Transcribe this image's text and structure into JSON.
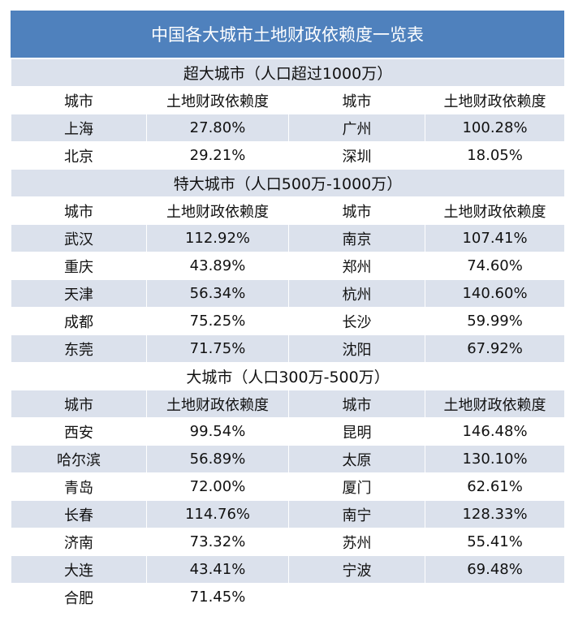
{
  "title": "中国各大城市土地财政依赖度一览表",
  "header": {
    "city": "城市",
    "ratio": "土地财政依赖度"
  },
  "sections": [
    {
      "label": "超大城市（人口超过1000万）",
      "rows": [
        [
          {
            "city": "上海",
            "ratio": "27.80%"
          },
          {
            "city": "广州",
            "ratio": "100.28%"
          }
        ],
        [
          {
            "city": "北京",
            "ratio": "29.21%"
          },
          {
            "city": "深圳",
            "ratio": "18.05%"
          }
        ]
      ]
    },
    {
      "label": "特大城市（人口500万-1000万）",
      "rows": [
        [
          {
            "city": "武汉",
            "ratio": "112.92%"
          },
          {
            "city": "南京",
            "ratio": "107.41%"
          }
        ],
        [
          {
            "city": "重庆",
            "ratio": "43.89%"
          },
          {
            "city": "郑州",
            "ratio": "74.60%"
          }
        ],
        [
          {
            "city": "天津",
            "ratio": "56.34%"
          },
          {
            "city": "杭州",
            "ratio": "140.60%"
          }
        ],
        [
          {
            "city": "成都",
            "ratio": "75.25%"
          },
          {
            "city": "长沙",
            "ratio": "59.99%"
          }
        ],
        [
          {
            "city": "东莞",
            "ratio": "71.75%"
          },
          {
            "city": "沈阳",
            "ratio": "67.92%"
          }
        ]
      ]
    },
    {
      "label": "大城市（人口300万-500万）",
      "rows": [
        [
          {
            "city": "西安",
            "ratio": "99.54%"
          },
          {
            "city": "昆明",
            "ratio": "146.48%"
          }
        ],
        [
          {
            "city": "哈尔滨",
            "ratio": "56.89%"
          },
          {
            "city": "太原",
            "ratio": "130.10%"
          }
        ],
        [
          {
            "city": "青岛",
            "ratio": "72.00%"
          },
          {
            "city": "厦门",
            "ratio": "62.61%"
          }
        ],
        [
          {
            "city": "长春",
            "ratio": "114.76%"
          },
          {
            "city": "南宁",
            "ratio": "128.33%"
          }
        ],
        [
          {
            "city": "济南",
            "ratio": "73.32%"
          },
          {
            "city": "苏州",
            "ratio": "55.41%"
          }
        ],
        [
          {
            "city": "大连",
            "ratio": "43.41%"
          },
          {
            "city": "宁波",
            "ratio": "69.48%"
          }
        ],
        [
          {
            "city": "合肥",
            "ratio": "71.45%"
          },
          {
            "city": "",
            "ratio": ""
          }
        ]
      ]
    }
  ]
}
